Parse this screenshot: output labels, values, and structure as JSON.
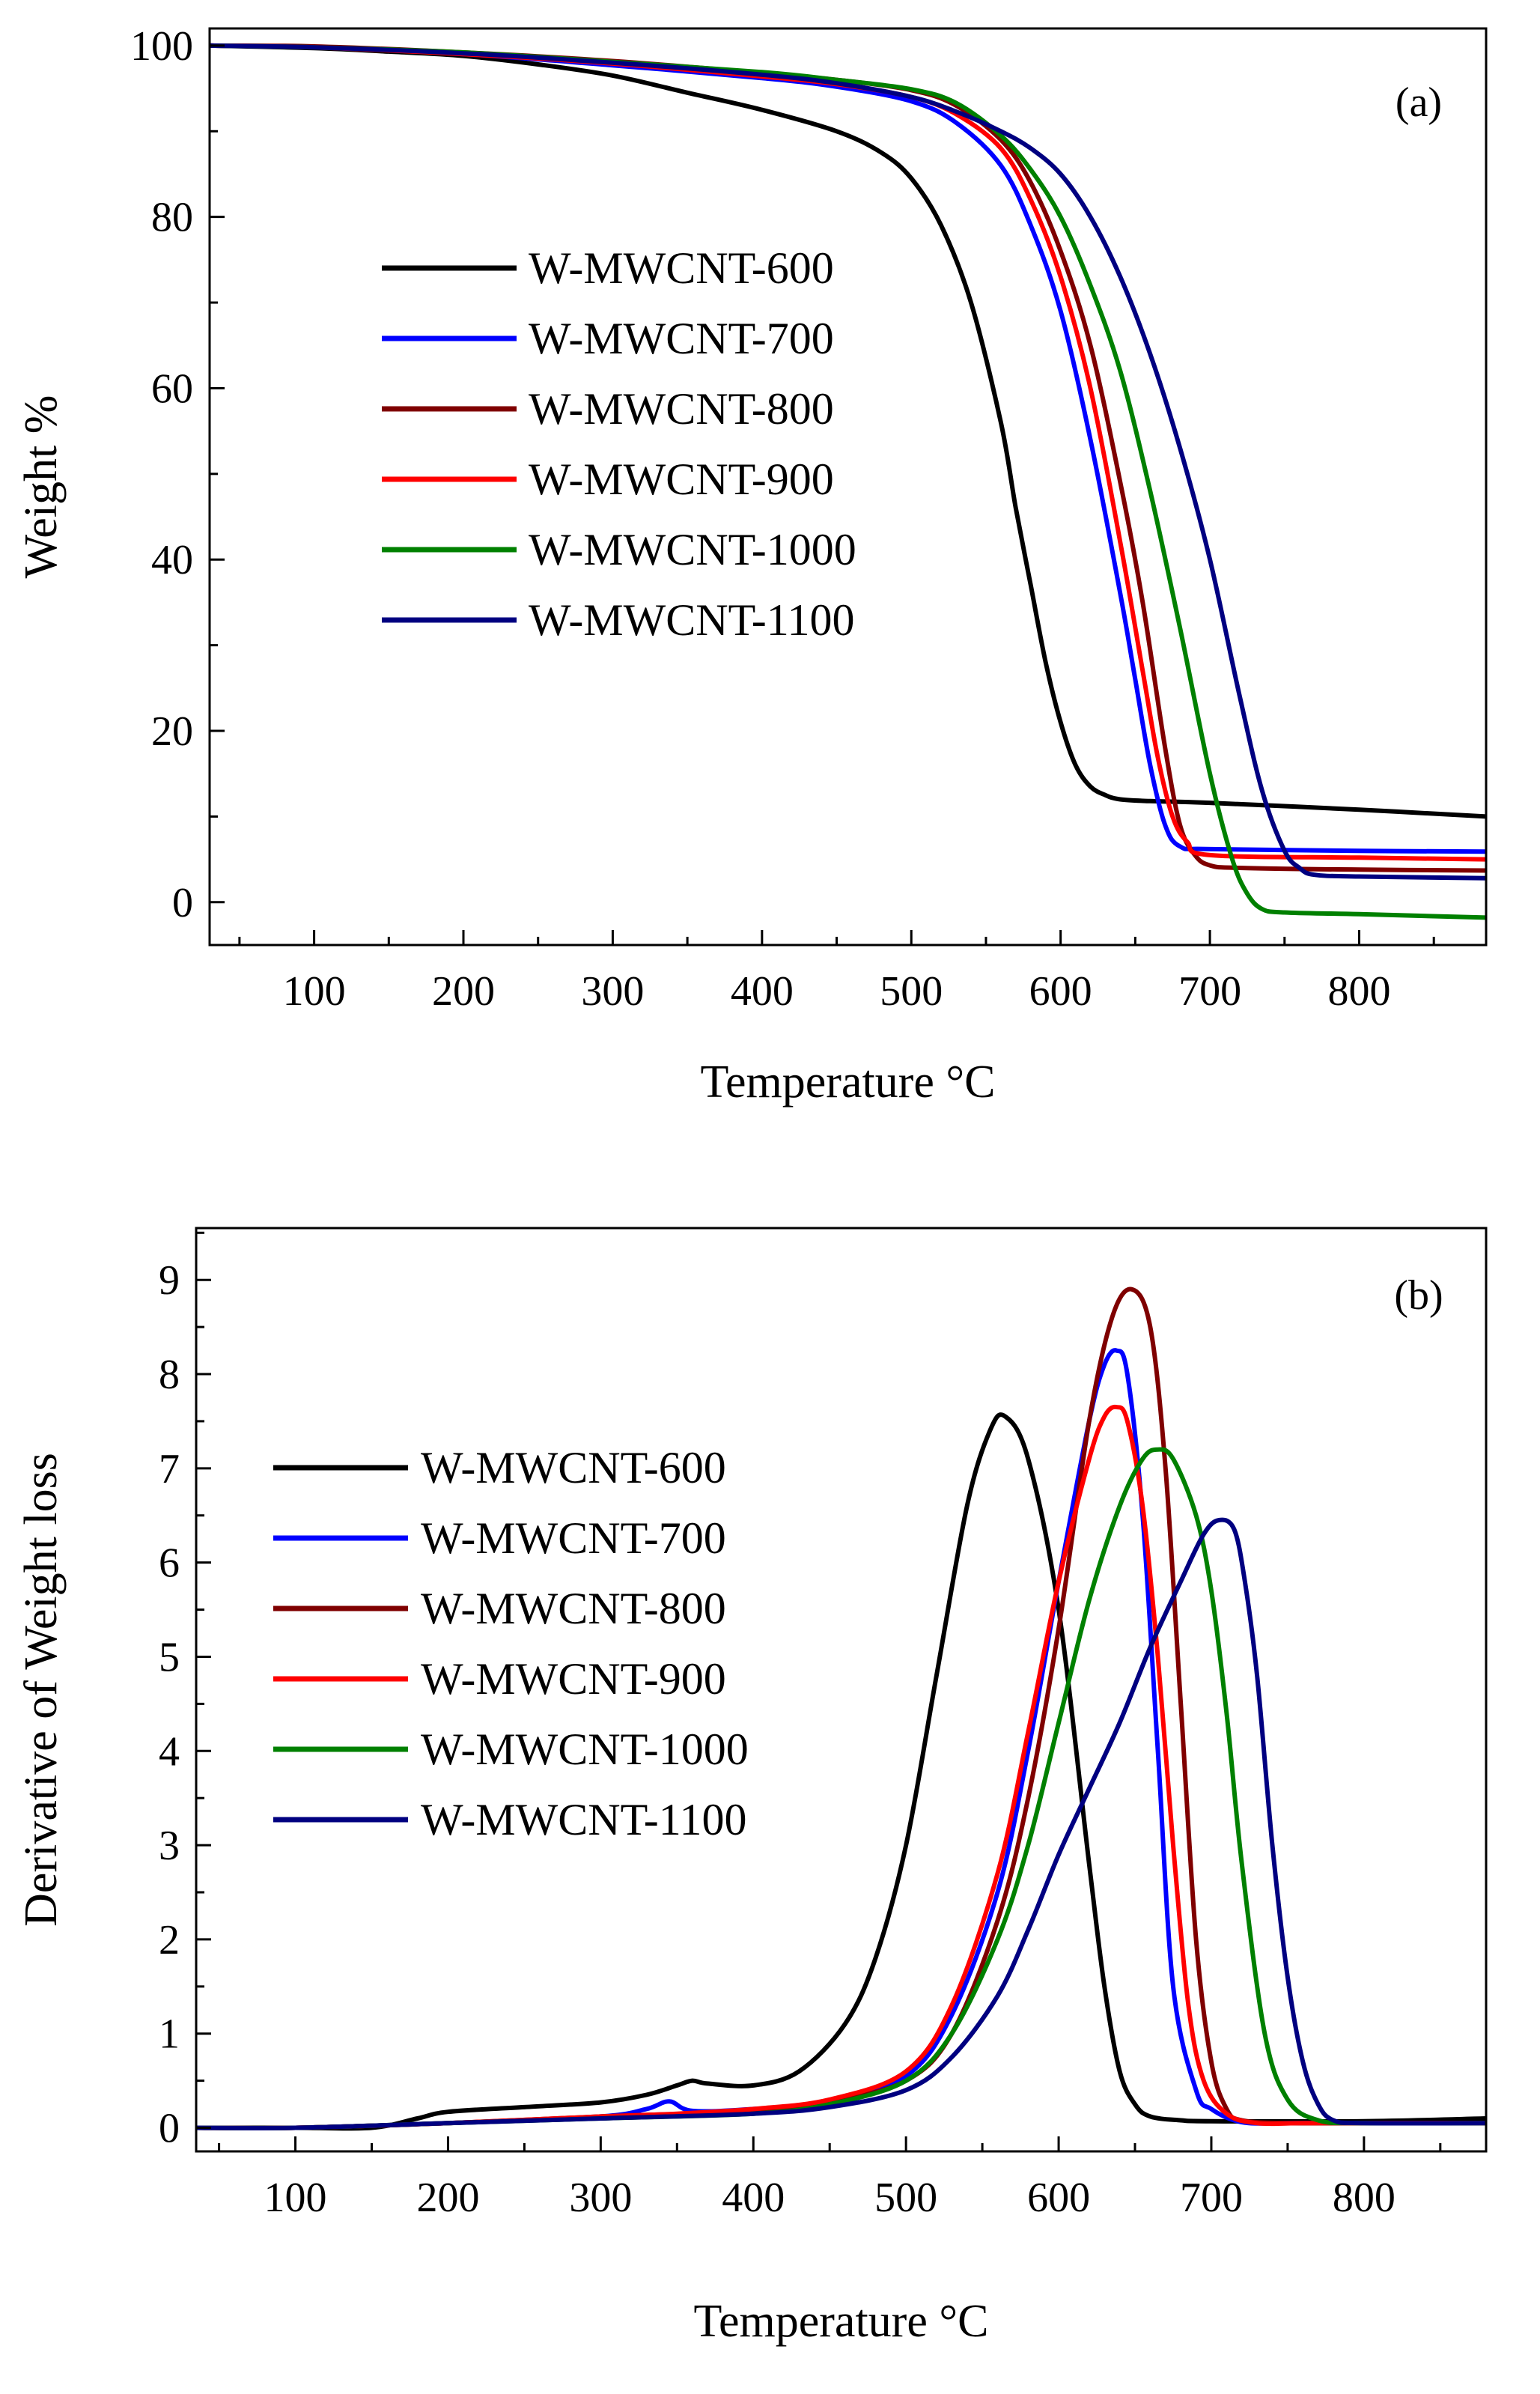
{
  "chart_data": [
    {
      "type": "line",
      "panel_label": "(a)",
      "title": "",
      "xlabel": "Temperature °C",
      "ylabel": "Weight %",
      "xlim": [
        30,
        885
      ],
      "ylim": [
        -5,
        102
      ],
      "xticks": [
        100,
        200,
        300,
        400,
        500,
        600,
        700,
        800
      ],
      "yticks": [
        0,
        20,
        40,
        60,
        80,
        100
      ],
      "grid": false,
      "legend_position": "center-left",
      "series": [
        {
          "name": "W-MWCNT-600",
          "color": "#000000",
          "x": [
            30,
            100,
            150,
            200,
            250,
            300,
            350,
            400,
            450,
            480,
            500,
            520,
            540,
            560,
            570,
            580,
            590,
            600,
            610,
            620,
            630,
            640,
            660,
            700,
            800,
            885
          ],
          "y": [
            100,
            99.7,
            99.3,
            98.8,
            97.8,
            96.5,
            94.5,
            92.5,
            90,
            87.5,
            84.5,
            79,
            70,
            56,
            46,
            37,
            28,
            21,
            16,
            13.5,
            12.5,
            12,
            11.8,
            11.6,
            10.8,
            10
          ]
        },
        {
          "name": "W-MWCNT-700",
          "color": "#0000ff",
          "x": [
            30,
            100,
            200,
            300,
            400,
            450,
            500,
            530,
            560,
            580,
            600,
            620,
            640,
            650,
            660,
            670,
            680,
            700,
            800,
            885
          ],
          "y": [
            100,
            99.8,
            99,
            97.7,
            96.2,
            95.2,
            93.5,
            91,
            86,
            79,
            69,
            54,
            36,
            26,
            16,
            9,
            6.5,
            6.2,
            6,
            5.9
          ]
        },
        {
          "name": "W-MWCNT-800",
          "color": "#7f0000",
          "x": [
            30,
            100,
            200,
            300,
            400,
            450,
            500,
            530,
            560,
            580,
            600,
            620,
            640,
            655,
            670,
            680,
            690,
            700,
            720,
            800,
            885
          ],
          "y": [
            100,
            99.9,
            99.2,
            98.2,
            96.8,
            96,
            94.8,
            93,
            89,
            84,
            76,
            65,
            49,
            35,
            18,
            9,
            5.5,
            4.3,
            4,
            3.8,
            3.7
          ]
        },
        {
          "name": "W-MWCNT-900",
          "color": "#ff0000",
          "x": [
            30,
            100,
            200,
            300,
            400,
            450,
            500,
            530,
            560,
            580,
            600,
            620,
            640,
            655,
            665,
            675,
            685,
            700,
            800,
            885
          ],
          "y": [
            100,
            99.8,
            99,
            97.9,
            96.4,
            95.5,
            94,
            92,
            88,
            82,
            73,
            60,
            42,
            27,
            17,
            10,
            7,
            5.5,
            5.2,
            5
          ]
        },
        {
          "name": "W-MWCNT-1000",
          "color": "#008000",
          "x": [
            30,
            100,
            200,
            300,
            400,
            450,
            500,
            530,
            560,
            580,
            600,
            620,
            640,
            660,
            680,
            700,
            715,
            725,
            735,
            750,
            800,
            885
          ],
          "y": [
            100,
            99.8,
            99.2,
            98.1,
            96.9,
            96,
            94.9,
            93.3,
            89.5,
            85.5,
            80,
            72,
            62,
            48,
            32,
            15,
            5,
            1,
            -0.8,
            -1.2,
            -1.4,
            -1.8
          ]
        },
        {
          "name": "W-MWCNT-1100",
          "color": "#000080",
          "x": [
            30,
            100,
            200,
            300,
            400,
            450,
            500,
            530,
            560,
            580,
            600,
            620,
            640,
            660,
            680,
            700,
            720,
            735,
            750,
            760,
            770,
            800,
            885
          ],
          "y": [
            100,
            99.8,
            99.1,
            98,
            96.6,
            95.6,
            94,
            92.3,
            90,
            88,
            85,
            80,
            73,
            64,
            53,
            40,
            24,
            13,
            6,
            4,
            3.2,
            3,
            2.8
          ]
        }
      ]
    },
    {
      "type": "line",
      "panel_label": "(b)",
      "title": "",
      "xlabel": "Temperature °C",
      "ylabel": "Derivative of Weight loss",
      "xlim": [
        35,
        880
      ],
      "ylim": [
        -0.25,
        9.55
      ],
      "xticks": [
        100,
        200,
        300,
        400,
        500,
        600,
        700,
        800
      ],
      "yticks": [
        0,
        1,
        2,
        3,
        4,
        5,
        6,
        7,
        8,
        9
      ],
      "grid": false,
      "legend_position": "center-left",
      "series": [
        {
          "name": "W-MWCNT-600",
          "color": "#000000",
          "x": [
            35,
            100,
            150,
            180,
            200,
            250,
            300,
            330,
            350,
            360,
            370,
            400,
            430,
            460,
            480,
            500,
            520,
            540,
            555,
            565,
            580,
            600,
            620,
            630,
            640,
            650,
            660,
            680,
            700,
            800,
            880
          ],
          "y": [
            0,
            0,
            0,
            0.1,
            0.17,
            0.22,
            0.27,
            0.35,
            0.45,
            0.5,
            0.47,
            0.45,
            0.6,
            1.1,
            1.8,
            3.0,
            4.8,
            6.6,
            7.4,
            7.55,
            7.1,
            5.5,
            2.8,
            1.5,
            0.6,
            0.25,
            0.12,
            0.08,
            0.07,
            0.07,
            0.1
          ]
        },
        {
          "name": "W-MWCNT-700",
          "color": "#0000ff",
          "x": [
            35,
            100,
            200,
            300,
            330,
            345,
            360,
            400,
            450,
            500,
            530,
            560,
            580,
            600,
            620,
            630,
            638,
            645,
            655,
            665,
            675,
            690,
            700,
            720,
            750,
            800,
            880
          ],
          "y": [
            0,
            0,
            0.05,
            0.12,
            0.2,
            0.28,
            0.18,
            0.2,
            0.28,
            0.55,
            1.2,
            2.5,
            4.0,
            5.8,
            7.5,
            8.1,
            8.25,
            8.0,
            6.5,
            4.0,
            1.5,
            0.4,
            0.2,
            0.06,
            0.05,
            0.05,
            0.05
          ]
        },
        {
          "name": "W-MWCNT-800",
          "color": "#7f0000",
          "x": [
            35,
            100,
            200,
            300,
            400,
            450,
            500,
            530,
            560,
            580,
            600,
            620,
            635,
            648,
            660,
            670,
            680,
            690,
            700,
            710,
            720,
            750,
            800,
            880
          ],
          "y": [
            0,
            0,
            0.05,
            0.12,
            0.18,
            0.28,
            0.5,
            1.0,
            2.2,
            3.5,
            5.3,
            7.5,
            8.6,
            8.9,
            8.5,
            7.0,
            4.5,
            2.0,
            0.7,
            0.2,
            0.08,
            0.05,
            0.05,
            0.05
          ]
        },
        {
          "name": "W-MWCNT-900",
          "color": "#ff0000",
          "x": [
            35,
            100,
            200,
            300,
            350,
            400,
            450,
            500,
            530,
            560,
            580,
            600,
            620,
            630,
            638,
            645,
            655,
            665,
            675,
            685,
            695,
            710,
            730,
            760,
            800,
            880
          ],
          "y": [
            0,
            0,
            0.05,
            0.12,
            0.15,
            0.2,
            0.3,
            0.6,
            1.3,
            2.7,
            4.2,
            5.8,
            7.1,
            7.55,
            7.65,
            7.5,
            6.6,
            5.0,
            3.0,
            1.3,
            0.5,
            0.15,
            0.05,
            0.05,
            0.05,
            0.05
          ]
        },
        {
          "name": "W-MWCNT-1000",
          "color": "#008000",
          "x": [
            35,
            100,
            200,
            300,
            400,
            450,
            500,
            530,
            560,
            580,
            600,
            620,
            640,
            655,
            665,
            675,
            690,
            700,
            710,
            720,
            735,
            750,
            770,
            800,
            880
          ],
          "y": [
            0,
            0,
            0.05,
            0.1,
            0.15,
            0.25,
            0.5,
            1.0,
            2.0,
            3.0,
            4.3,
            5.6,
            6.6,
            7.1,
            7.2,
            7.1,
            6.5,
            5.7,
            4.4,
            2.8,
            1.0,
            0.3,
            0.08,
            0.05,
            0.05
          ]
        },
        {
          "name": "W-MWCNT-1100",
          "color": "#000080",
          "x": [
            35,
            100,
            200,
            300,
            400,
            450,
            500,
            530,
            560,
            580,
            600,
            620,
            640,
            660,
            680,
            695,
            705,
            715,
            722,
            730,
            740,
            750,
            760,
            770,
            780,
            800,
            880
          ],
          "y": [
            0,
            0,
            0.05,
            0.1,
            0.15,
            0.22,
            0.4,
            0.75,
            1.4,
            2.1,
            2.9,
            3.6,
            4.3,
            5.1,
            5.8,
            6.3,
            6.45,
            6.35,
            5.8,
            4.8,
            3.0,
            1.6,
            0.7,
            0.25,
            0.08,
            0.05,
            0.05
          ]
        }
      ]
    }
  ]
}
